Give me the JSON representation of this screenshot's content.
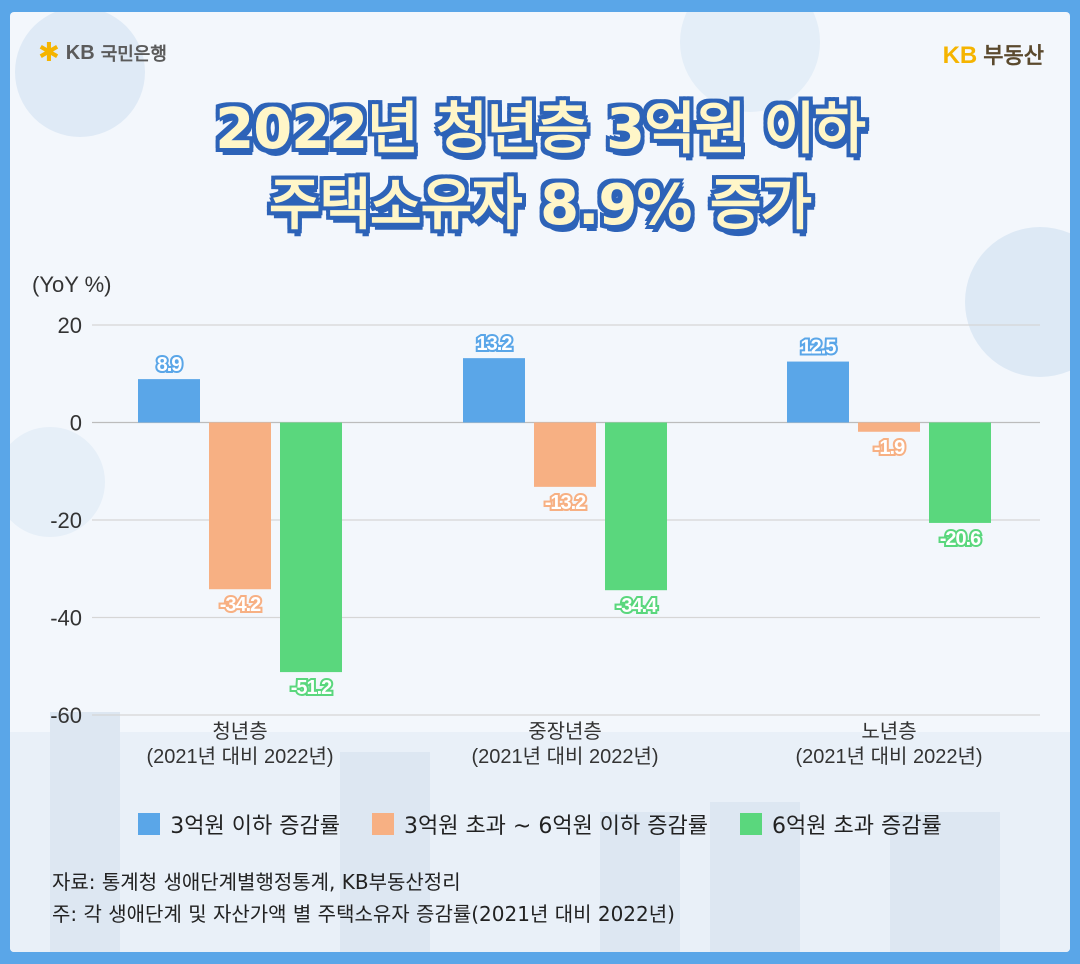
{
  "header": {
    "bank_logo_text": "KB",
    "bank_name": "국민은행",
    "brand_logo_text": "KB",
    "brand_name": "부동산"
  },
  "title": {
    "line1": "2022년 청년층 3억원 이하",
    "line2": "주택소유자 8.9% 증가"
  },
  "colors": {
    "background": "#f3f7fc",
    "frame": "#5aa6e8",
    "series_blue": "#5aa6e8",
    "series_orange": "#f7b083",
    "series_green": "#5ad77d",
    "title_fill": "#fff6c8",
    "title_outline": "#2d63b8"
  },
  "chart_data": {
    "type": "bar",
    "ylabel": "(YoY %)",
    "ylim": [
      -60,
      20
    ],
    "yticks": [
      20,
      0,
      -20,
      -40,
      -60
    ],
    "grid": true,
    "categories": [
      [
        "청년층",
        "(2021년 대비 2022년)"
      ],
      [
        "중장년층",
        "(2021년 대비 2022년)"
      ],
      [
        "노년층",
        "(2021년 대비 2022년)"
      ]
    ],
    "series": [
      {
        "name": "3억원 이하 증감률",
        "color": "#5aa6e8",
        "values": [
          8.9,
          13.2,
          12.5
        ]
      },
      {
        "name": "3억원 초과 ~ 6억원 이하 증감률",
        "color": "#f7b083",
        "values": [
          -34.2,
          -13.2,
          -1.9
        ]
      },
      {
        "name": "6억원 초과 증감률",
        "color": "#5ad77d",
        "values": [
          -51.2,
          -34.4,
          -20.6
        ]
      }
    ],
    "legend_position": "bottom"
  },
  "notes": {
    "source": "자료: 통계청 생애단계별행정통계, KB부동산정리",
    "footnote": "주: 각 생애단계 및 자산가액 별 주택소유자 증감률(2021년 대비 2022년)"
  }
}
